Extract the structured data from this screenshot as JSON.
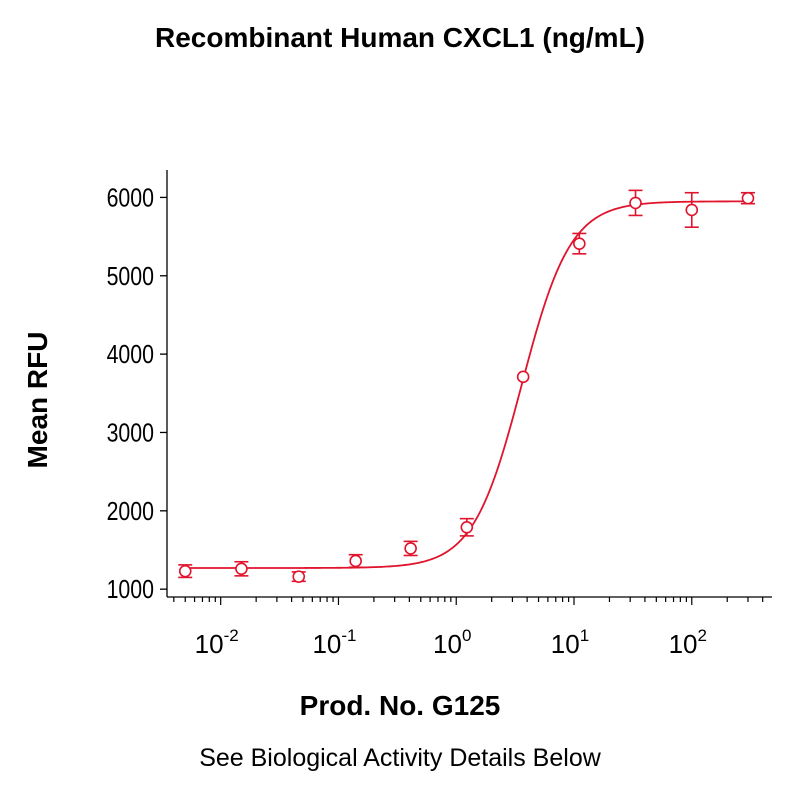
{
  "chart_data": {
    "type": "scatter",
    "title": "Recombinant Human CXCL1 (ng/mL)",
    "xlabel": "Prod. No. G125",
    "ylabel": "Mean RFU",
    "caption": "See Biological Activity Details Below",
    "x_scale": "log",
    "xlim": [
      0.0035,
      480
    ],
    "ylim": [
      900,
      6350
    ],
    "y_ticks": [
      {
        "value": 1000,
        "label": "1000"
      },
      {
        "value": 2000,
        "label": "2000"
      },
      {
        "value": 3000,
        "label": "3000"
      },
      {
        "value": 4000,
        "label": "4000"
      },
      {
        "value": 5000,
        "label": "5000"
      },
      {
        "value": 6000,
        "label": "6000"
      }
    ],
    "x_ticks": [
      {
        "value": 0.01,
        "base": "10",
        "exp": "-2"
      },
      {
        "value": 0.1,
        "base": "10",
        "exp": "-1"
      },
      {
        "value": 1,
        "base": "10",
        "exp": "0"
      },
      {
        "value": 10,
        "base": "10",
        "exp": "1"
      },
      {
        "value": 100,
        "base": "10",
        "exp": "2"
      }
    ],
    "points": [
      {
        "x": 0.005,
        "y": 1230,
        "err": 80
      },
      {
        "x": 0.015,
        "y": 1260,
        "err": 90
      },
      {
        "x": 0.046,
        "y": 1160,
        "err": 60
      },
      {
        "x": 0.14,
        "y": 1360,
        "err": 80
      },
      {
        "x": 0.41,
        "y": 1520,
        "err": 90
      },
      {
        "x": 1.23,
        "y": 1790,
        "err": 110
      },
      {
        "x": 3.7,
        "y": 3710,
        "err": 0
      },
      {
        "x": 11.1,
        "y": 5410,
        "err": 130
      },
      {
        "x": 33.3,
        "y": 5930,
        "err": 160
      },
      {
        "x": 100,
        "y": 5840,
        "err": 220
      },
      {
        "x": 300,
        "y": 5990,
        "err": 70
      }
    ],
    "fit": {
      "model": "4PL",
      "bottom": 1270,
      "top": 5950,
      "ec50": 3.6,
      "hill": 2.1
    },
    "color": "#e0142c"
  }
}
